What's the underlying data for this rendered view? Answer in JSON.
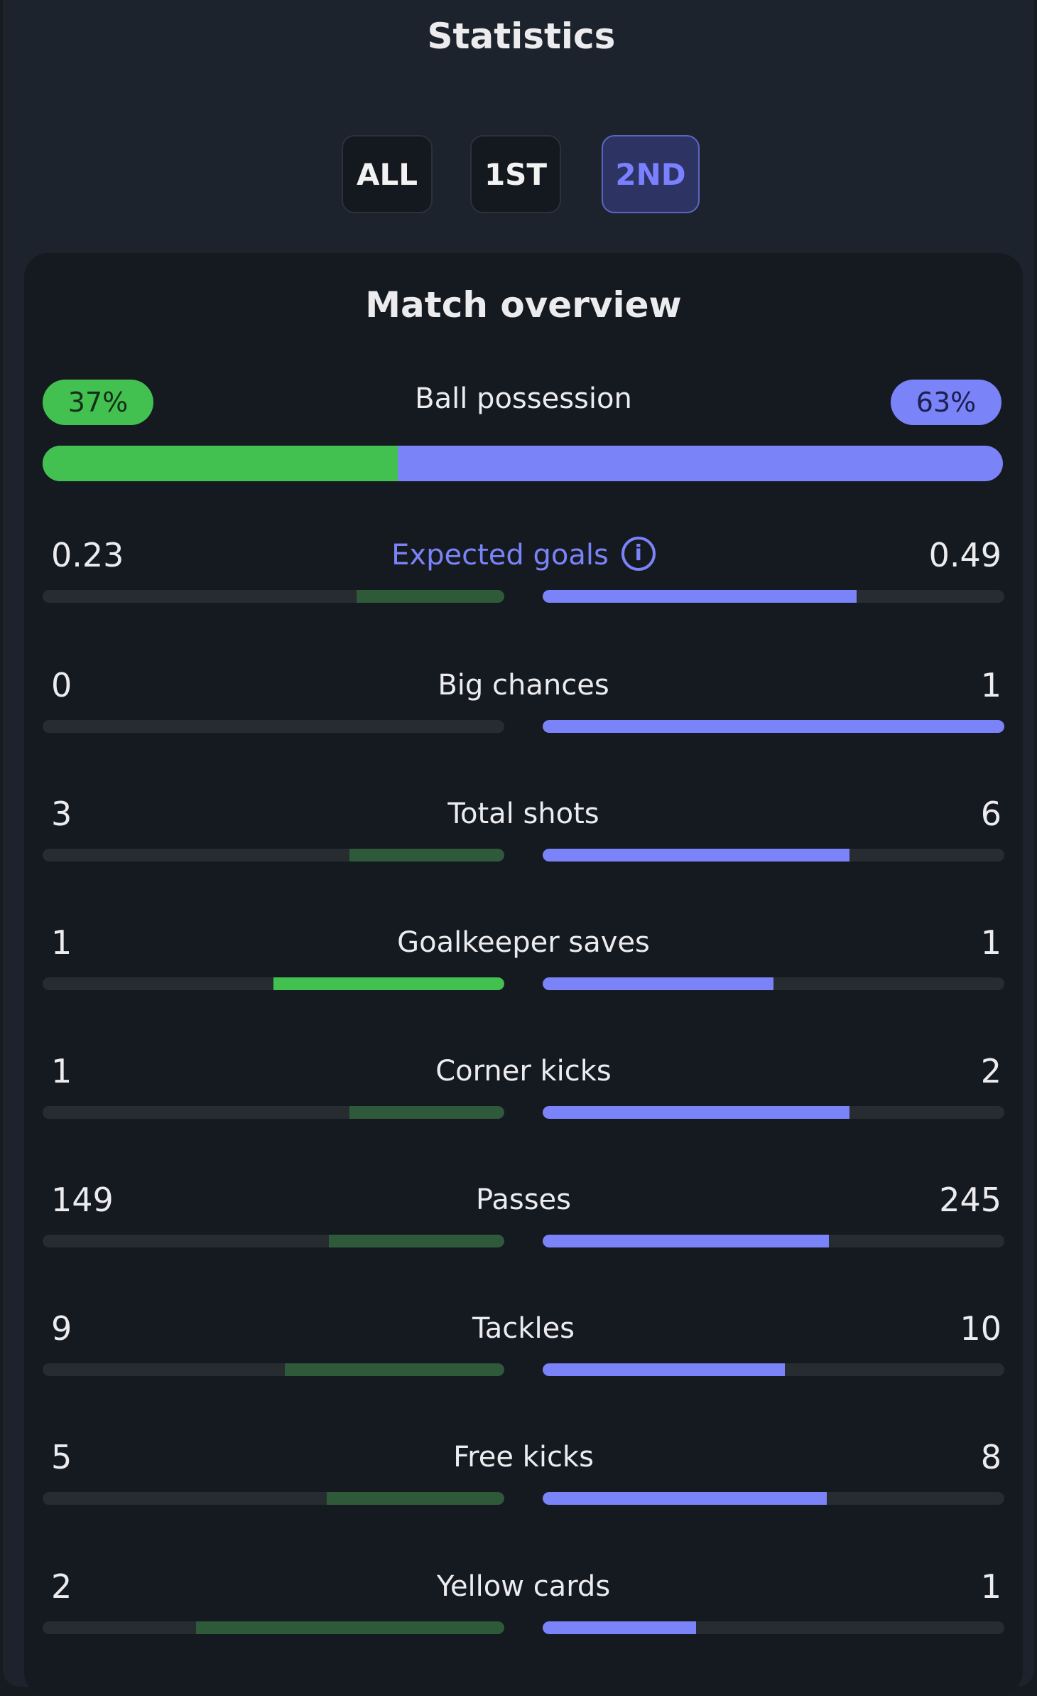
{
  "header": {
    "title": "Statistics"
  },
  "tabs": [
    {
      "label": "ALL",
      "active": false
    },
    {
      "label": "1ST",
      "active": false
    },
    {
      "label": "2ND",
      "active": true
    }
  ],
  "overview": {
    "title": "Match overview",
    "possession": {
      "label": "Ball possession",
      "home": "37%",
      "away": "63%",
      "home_fraction": 0.37
    },
    "stats": [
      {
        "label": "Expected goals",
        "home": "0.23",
        "away": "0.49",
        "home_fill": 0.32,
        "away_fill": 0.68,
        "home_leads": false,
        "info": true
      },
      {
        "label": "Big chances",
        "home": "0",
        "away": "1",
        "home_fill": 0.0,
        "away_fill": 1.0,
        "home_leads": false
      },
      {
        "label": "Total shots",
        "home": "3",
        "away": "6",
        "home_fill": 0.335,
        "away_fill": 0.665,
        "home_leads": false
      },
      {
        "label": "Goalkeeper saves",
        "home": "1",
        "away": "1",
        "home_fill": 0.5,
        "away_fill": 0.5,
        "home_leads": true
      },
      {
        "label": "Corner kicks",
        "home": "1",
        "away": "2",
        "home_fill": 0.335,
        "away_fill": 0.665,
        "home_leads": false
      },
      {
        "label": "Passes",
        "home": "149",
        "away": "245",
        "home_fill": 0.38,
        "away_fill": 0.62,
        "home_leads": false
      },
      {
        "label": "Tackles",
        "home": "9",
        "away": "10",
        "home_fill": 0.475,
        "away_fill": 0.525,
        "home_leads": false
      },
      {
        "label": "Free kicks",
        "home": "5",
        "away": "8",
        "home_fill": 0.385,
        "away_fill": 0.615,
        "home_leads": false
      },
      {
        "label": "Yellow cards",
        "home": "2",
        "away": "1",
        "home_fill": 0.667,
        "away_fill": 0.333,
        "home_leads": false
      }
    ]
  },
  "colors": {
    "home": "#43c150",
    "away": "#7b83f8",
    "home_dim": "#2f5a3a",
    "track": "#262c30"
  },
  "icons": {
    "info": "info-icon"
  }
}
